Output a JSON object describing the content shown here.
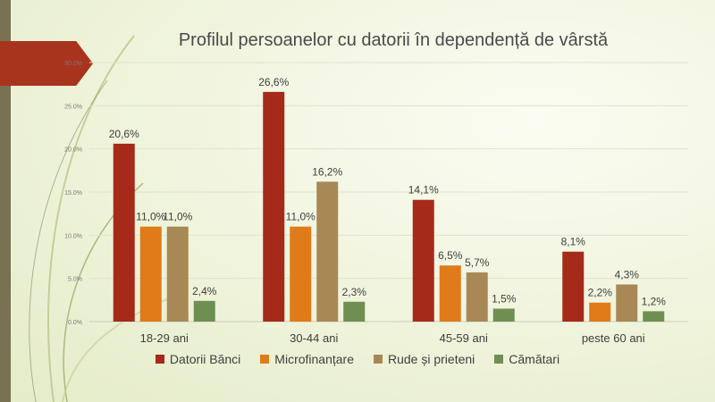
{
  "chart_data": {
    "type": "bar",
    "title": "Profilul persoanelor cu datorii în dependență de vârstă",
    "categories": [
      "18-29 ani",
      "30-44 ani",
      "45-59 ani",
      "peste 60 ani"
    ],
    "ylim": [
      0,
      30
    ],
    "yticks": [
      {
        "value": 0,
        "label": "0.0%"
      },
      {
        "value": 5,
        "label": "5.0%"
      },
      {
        "value": 10,
        "label": "10.0%"
      },
      {
        "value": 15,
        "label": "15.0%"
      },
      {
        "value": 20,
        "label": "20.0%"
      },
      {
        "value": 25,
        "label": "25.0%"
      },
      {
        "value": 30,
        "label": "30.0%"
      }
    ],
    "series": [
      {
        "name": "Datorii Bănci",
        "color": "#a52a1a",
        "values": [
          20.6,
          26.6,
          14.1,
          8.1
        ],
        "labels": [
          "20,6%",
          "26,6%",
          "14,1%",
          "8,1%"
        ]
      },
      {
        "name": "Microfinanțare",
        "color": "#e07b1a",
        "values": [
          11.0,
          11.0,
          6.5,
          2.2
        ],
        "labels": [
          "11,0%",
          "11,0%",
          "6,5%",
          "2,2%"
        ]
      },
      {
        "name": "Rude și prieteni",
        "color": "#a88955",
        "values": [
          11.0,
          16.2,
          5.7,
          4.3
        ],
        "labels": [
          "11,0%",
          "16,2%",
          "5,7%",
          "4,3%"
        ]
      },
      {
        "name": "Cămătari",
        "color": "#6f8f52",
        "values": [
          2.4,
          2.3,
          1.5,
          1.2
        ],
        "labels": [
          "2,4%",
          "2,3%",
          "1,5%",
          "1,2%"
        ]
      }
    ],
    "legend": "bottom"
  }
}
